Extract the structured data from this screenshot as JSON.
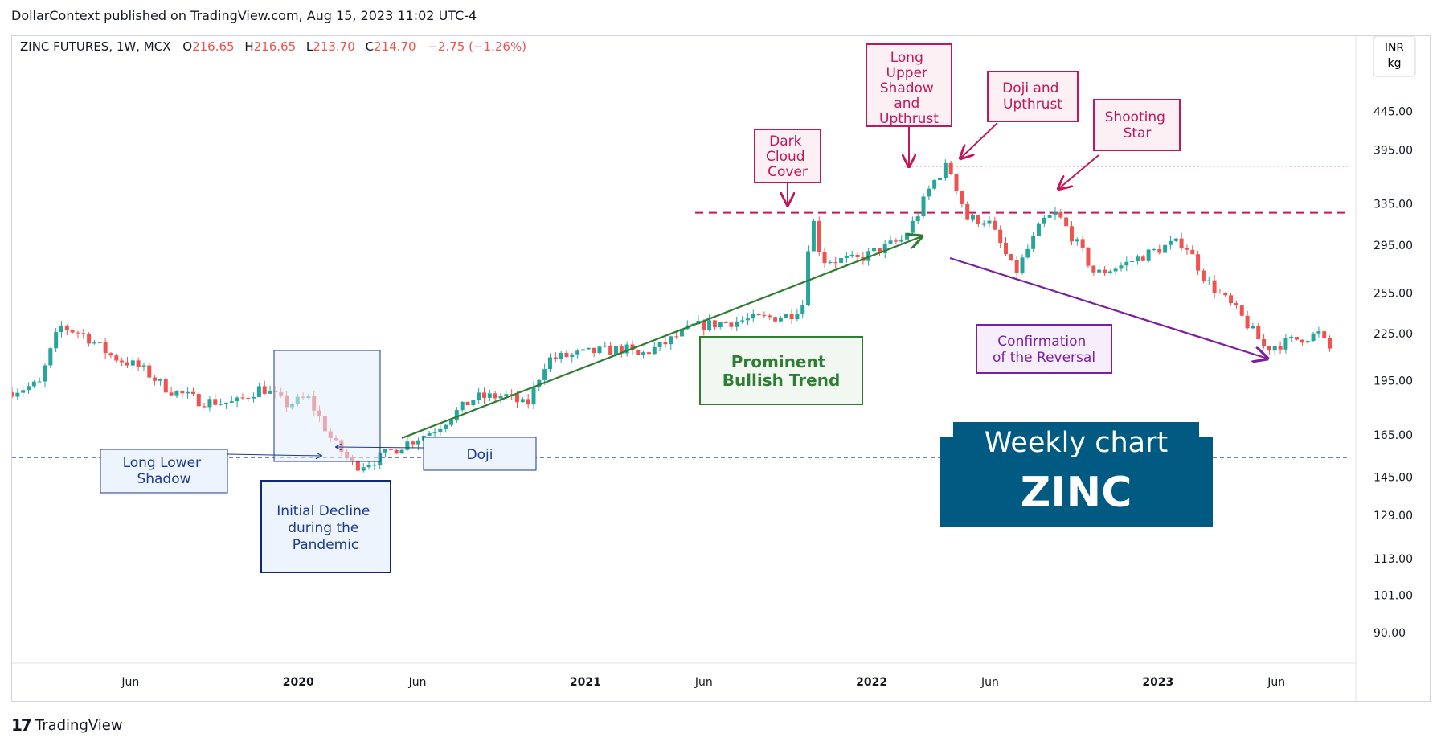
{
  "header": {
    "publish_line": "DollarContext published on TradingView.com, Aug 15, 2023 11:02 UTC-4"
  },
  "legend": {
    "symbol": "ZINC FUTURES, 1W, MCX",
    "o_label": "O",
    "o_value": "216.65",
    "h_label": "H",
    "h_value": "216.65",
    "l_label": "L",
    "l_value": "213.70",
    "c_label": "C",
    "c_value": "214.70",
    "change": "−2.75 (−1.26%)"
  },
  "price_axis": {
    "currency": "INR",
    "unit": "kg"
  },
  "footer": {
    "logo": "17",
    "brand": "TradingView"
  },
  "colors": {
    "up": "#26a69a",
    "down": "#ef5350",
    "annotation_red": "#c2185b",
    "annotation_blue": "#1a3a8f",
    "trend_green": "#2e7d32",
    "reversal_purple": "#7b1fa2",
    "banner": "#005a82"
  },
  "chart_data": {
    "type": "candlestick",
    "interval": "1W",
    "scale": "log",
    "ylim": [
      82,
      560
    ],
    "y_ticks": [
      445,
      395,
      335,
      295,
      255,
      225,
      195,
      165,
      145,
      129,
      113,
      101,
      90
    ],
    "y_tick_labels": [
      "445.00",
      "395.00",
      "335.00",
      "295.00",
      "255.00",
      "225.00",
      "195.00",
      "165.00",
      "145.00",
      "129.00",
      "113.00",
      "101.00",
      "90.00"
    ],
    "x_ticks": [
      {
        "label": "Jun",
        "date": "2019-06-01",
        "bold": false
      },
      {
        "label": "2020",
        "date": "2020-01-01",
        "bold": true
      },
      {
        "label": "Jun",
        "date": "2020-06-01",
        "bold": false
      },
      {
        "label": "2021",
        "date": "2021-01-01",
        "bold": true
      },
      {
        "label": "Jun",
        "date": "2021-06-01",
        "bold": false
      },
      {
        "label": "2022",
        "date": "2022-01-01",
        "bold": true
      },
      {
        "label": "Jun",
        "date": "2022-06-01",
        "bold": false
      },
      {
        "label": "2023",
        "date": "2023-01-01",
        "bold": true
      },
      {
        "label": "Jun",
        "date": "2023-06-01",
        "bold": false
      }
    ],
    "x_range": [
      "2019-01-01",
      "2023-08-31"
    ],
    "series_anchors": [
      [
        "2019-01-01",
        188
      ],
      [
        "2019-02-12",
        193
      ],
      [
        "2019-03-10",
        230
      ],
      [
        "2019-04-08",
        225
      ],
      [
        "2019-05-15",
        210
      ],
      [
        "2019-06-20",
        203
      ],
      [
        "2019-07-25",
        190
      ],
      [
        "2019-09-05",
        183
      ],
      [
        "2019-10-20",
        182
      ],
      [
        "2019-11-22",
        191
      ],
      [
        "2019-12-25",
        181
      ],
      [
        "2020-01-20",
        185
      ],
      [
        "2020-02-20",
        162
      ],
      [
        "2020-03-20",
        150
      ],
      [
        "2020-04-10",
        152
      ],
      [
        "2020-05-20",
        160
      ],
      [
        "2020-07-01",
        168
      ],
      [
        "2020-08-20",
        185
      ],
      [
        "2020-09-30",
        186
      ],
      [
        "2020-10-25",
        180
      ],
      [
        "2020-11-20",
        208
      ],
      [
        "2021-01-20",
        213
      ],
      [
        "2021-02-28",
        215
      ],
      [
        "2021-03-15",
        210
      ],
      [
        "2021-04-15",
        217
      ],
      [
        "2021-05-25",
        230
      ],
      [
        "2021-07-20",
        234
      ],
      [
        "2021-09-25",
        238
      ],
      [
        "2021-10-15",
        248
      ],
      [
        "2021-10-22",
        330
      ],
      [
        "2021-11-05",
        282
      ],
      [
        "2021-12-20",
        282
      ],
      [
        "2022-02-15",
        300
      ],
      [
        "2022-03-05",
        320
      ],
      [
        "2022-03-25",
        355
      ],
      [
        "2022-04-15",
        378
      ],
      [
        "2022-05-10",
        320
      ],
      [
        "2022-06-05",
        318
      ],
      [
        "2022-07-10",
        270
      ],
      [
        "2022-08-15",
        318
      ],
      [
        "2022-09-01",
        325
      ],
      [
        "2022-10-20",
        270
      ],
      [
        "2022-11-25",
        278
      ],
      [
        "2023-01-20",
        295
      ],
      [
        "2023-02-10",
        298
      ],
      [
        "2023-03-10",
        265
      ],
      [
        "2023-04-20",
        240
      ],
      [
        "2023-05-25",
        215
      ],
      [
        "2023-06-25",
        220
      ],
      [
        "2023-08-01",
        225
      ],
      [
        "2023-08-14",
        214.7
      ]
    ],
    "horizontal_lines": [
      {
        "value": 376,
        "style": "dotted",
        "color": "#c2185b"
      },
      {
        "value": 326,
        "style": "dashed",
        "color": "#c2185b"
      },
      {
        "value": 216.65,
        "style": "dotted",
        "color": "#ef5350"
      },
      {
        "value": 154,
        "style": "dashed",
        "color": "#1a3a8f"
      }
    ],
    "annotations": {
      "long_lower_shadow": "Long Lower Shadow",
      "doji": "Doji",
      "initial_decline": "Initial Decline during the Pandemic",
      "prominent_bullish_trend": "Prominent Bullish Trend",
      "dark_cloud_cover": "Dark Cloud Cover",
      "long_upper_shadow": "Long Upper Shadow and Upthrust",
      "doji_upthrust": "Doji and Upthrust",
      "shooting_star": "Shooting Star",
      "confirmation": "Confirmation of the Reversal"
    },
    "banner": {
      "line1": "Weekly chart",
      "line2": "ZINC"
    }
  }
}
